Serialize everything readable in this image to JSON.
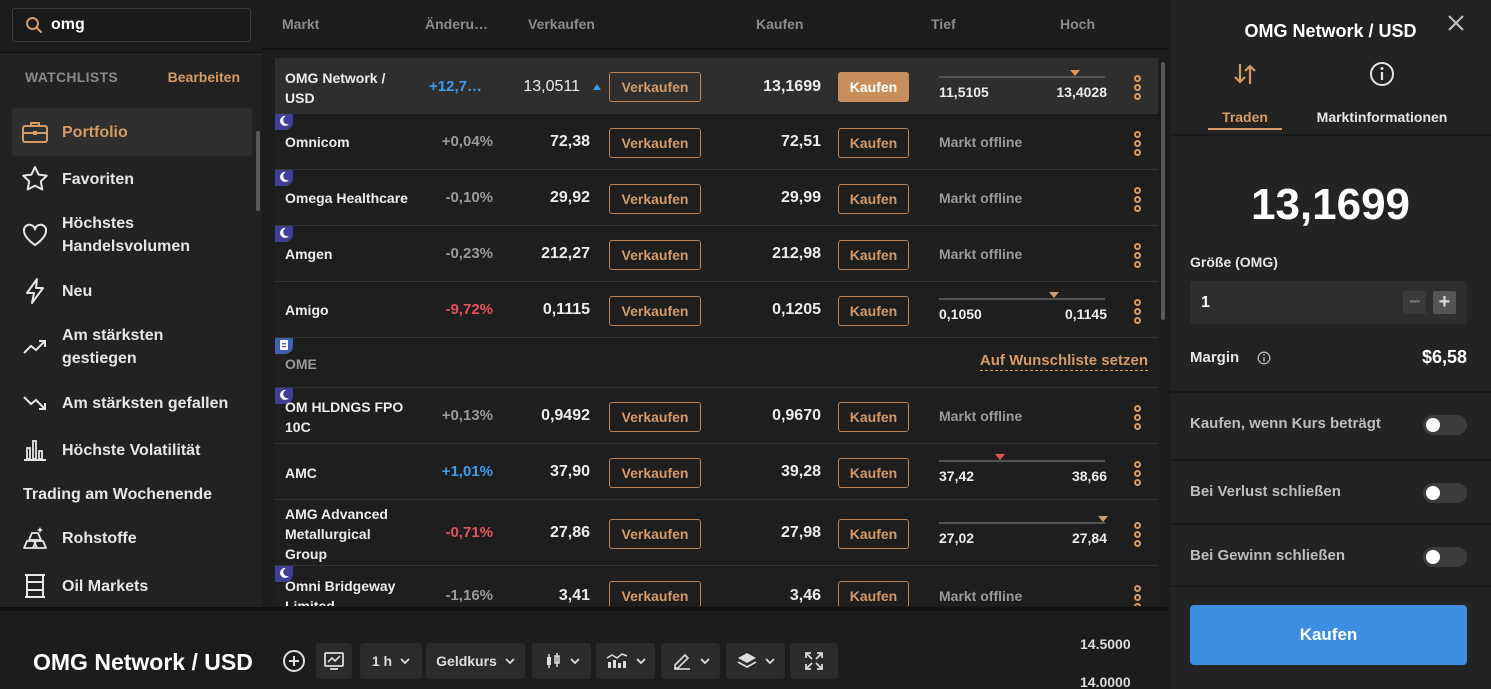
{
  "search": {
    "value": "omg"
  },
  "columns": {
    "markt": "Markt",
    "aenderung": "Änderu…",
    "verkaufen": "Verkaufen",
    "kaufen": "Kaufen",
    "tief": "Tief",
    "hoch": "Hoch"
  },
  "sidebar": {
    "header": "WATCHLISTS",
    "edit": "Bearbeiten",
    "items": [
      {
        "label": "Portfolio",
        "icon": "briefcase-icon"
      },
      {
        "label": "Favoriten",
        "icon": "star-icon"
      },
      {
        "label": "Höchstes\nHandelsvolumen",
        "icon": "heart-icon"
      },
      {
        "label": "Neu",
        "icon": "lightning-icon"
      },
      {
        "label": "Am stärksten\ngestiegen",
        "icon": "trend-up-icon"
      },
      {
        "label": "Am stärksten gefallen",
        "icon": "trend-down-icon"
      },
      {
        "label": "Höchste Volatilität",
        "icon": "bar-chart-icon"
      },
      {
        "label": "Trading am Wochenende",
        "icon": ""
      },
      {
        "label": "Rohstoffe",
        "icon": "gold-bars-icon"
      },
      {
        "label": "Oil Markets",
        "icon": "oil-barrel-icon"
      }
    ]
  },
  "rows": [
    {
      "name": "OMG Network /\nUSD",
      "change": "+12,7…",
      "sell": "13,0511",
      "sell_btn": "Verkaufen",
      "buy": "13,1699",
      "buy_btn": "Kaufen",
      "low": "11,5105",
      "high": "13,4028",
      "marker": 0.82,
      "marker_color": "#d49b67"
    },
    {
      "name": "Omnicom",
      "change": "+0,04%",
      "sell": "72,38",
      "sell_btn": "Verkaufen",
      "buy": "72,51",
      "buy_btn": "Kaufen",
      "offline": "Markt offline"
    },
    {
      "name": "Omega Healthcare",
      "change": "-0,10%",
      "sell": "29,92",
      "sell_btn": "Verkaufen",
      "buy": "29,99",
      "buy_btn": "Kaufen",
      "offline": "Markt offline"
    },
    {
      "name": "Amgen",
      "change": "-0,23%",
      "sell": "212,27",
      "sell_btn": "Verkaufen",
      "buy": "212,98",
      "buy_btn": "Kaufen",
      "offline": "Markt offline"
    },
    {
      "name": "Amigo",
      "change": "-9,72%",
      "sell": "0,1115",
      "sell_btn": "Verkaufen",
      "buy": "0,1205",
      "buy_btn": "Kaufen",
      "low": "0,1050",
      "high": "0,1145",
      "marker": 0.69,
      "marker_color": "#d49b67"
    },
    {
      "name": "OME",
      "watchlist": "Auf Wunschliste setzen"
    },
    {
      "name": "OM HLDNGS FPO\n10C",
      "change": "+0,13%",
      "sell": "0,9492",
      "sell_btn": "Verkaufen",
      "buy": "0,9670",
      "buy_btn": "Kaufen",
      "offline": "Markt offline"
    },
    {
      "name": "AMC",
      "change": "+1,01%",
      "sell": "37,90",
      "sell_btn": "Verkaufen",
      "buy": "39,28",
      "buy_btn": "Kaufen",
      "low": "37,42",
      "high": "38,66",
      "marker": 0.37,
      "marker_color": "#e8525b"
    },
    {
      "name": "AMG Advanced\nMetallurgical\nGroup",
      "change": "-0,71%",
      "sell": "27,86",
      "sell_btn": "Verkaufen",
      "buy": "27,98",
      "buy_btn": "Kaufen",
      "low": "27,02",
      "high": "27,84",
      "marker": 0.99,
      "marker_color": "#d49b67"
    },
    {
      "name": "Omni Bridgeway\nLimited",
      "change": "-1,16%",
      "sell": "3,41",
      "sell_btn": "Verkaufen",
      "buy": "3,46",
      "buy_btn": "Kaufen",
      "offline": "Markt offline"
    }
  ],
  "panel": {
    "title": "OMG Network / USD",
    "tab_trade": "Traden",
    "tab_info": "Marktinformationen",
    "price": "13,1699",
    "size_label": "Größe (OMG)",
    "size_value": "1",
    "minus": "−",
    "plus": "+",
    "margin_label": "Margin",
    "margin_value": "$6,58",
    "toggle_buy_at": "Kaufen, wenn Kurs beträgt",
    "toggle_stop_loss": "Bei Verlust schließen",
    "toggle_take_profit": "Bei Gewinn schließen",
    "buy_button": "Kaufen"
  },
  "chart": {
    "title": "OMG Network / USD",
    "interval": "1 h",
    "price_type": "Geldkurs",
    "y_ticks": [
      "14.5000",
      "14.0000"
    ]
  }
}
